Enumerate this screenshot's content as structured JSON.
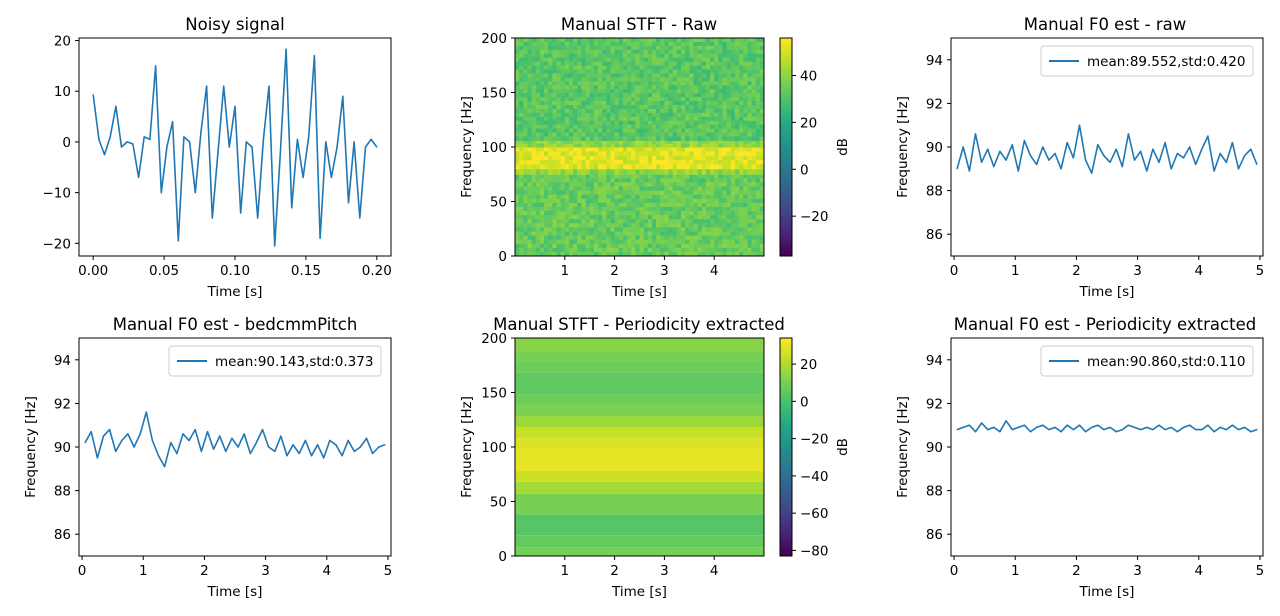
{
  "figure": {
    "titles": [
      "Noisy signal",
      "Manual STFT - Raw",
      "Manual F0 est - raw",
      "Manual F0 est - bedcmmPitch",
      "Manual STFT - Periodicity extracted",
      "Manual F0 est - Periodicity extracted"
    ]
  },
  "chart_data": [
    {
      "type": "line",
      "title": "Noisy signal",
      "xlabel": "Time [s]",
      "ylabel": "",
      "xlim": [
        -0.01,
        0.21
      ],
      "ylim": [
        -22.5,
        20.5
      ],
      "xticks": [
        0.0,
        0.05,
        0.1,
        0.15,
        0.2
      ],
      "xtick_labels": [
        "0.00",
        "0.05",
        "0.10",
        "0.15",
        "0.20"
      ],
      "yticks": [
        -20,
        -10,
        0,
        10,
        20
      ],
      "ytick_labels": [
        "−20",
        "−10",
        "0",
        "10",
        "20"
      ],
      "color": "#1f77b4",
      "series": [
        {
          "x": [
            0.0,
            0.004,
            0.008,
            0.012,
            0.016,
            0.02,
            0.024,
            0.028,
            0.032,
            0.036,
            0.04,
            0.044,
            0.048,
            0.052,
            0.056,
            0.06,
            0.064,
            0.068,
            0.072,
            0.076,
            0.08,
            0.084,
            0.088,
            0.092,
            0.096,
            0.1,
            0.104,
            0.108,
            0.112,
            0.116,
            0.12,
            0.124,
            0.128,
            0.132,
            0.136,
            0.14,
            0.144,
            0.148,
            0.152,
            0.156,
            0.16,
            0.164,
            0.168,
            0.172,
            0.176,
            0.18,
            0.184,
            0.188,
            0.192,
            0.196,
            0.2
          ],
          "y": [
            9.3,
            0.5,
            -2.5,
            1,
            7,
            -1,
            0,
            -0.4,
            -7,
            1,
            0.5,
            15,
            -10,
            -1,
            4,
            -19.5,
            1,
            0,
            -10,
            2,
            11,
            -15,
            -2,
            11,
            -1,
            7,
            -14,
            0,
            -1,
            -15,
            0.5,
            11,
            -20.5,
            -2,
            18.3,
            -13,
            0.5,
            -7,
            1,
            17,
            -19,
            0,
            -7,
            -1,
            9,
            -12,
            0,
            -15,
            -1,
            0.5,
            -1
          ]
        }
      ]
    },
    {
      "type": "heatmap",
      "title": "Manual STFT - Raw",
      "xlabel": "Time [s]",
      "ylabel": "Frequency [Hz]",
      "xlim": [
        0,
        5
      ],
      "ylim": [
        0,
        200
      ],
      "xticks": [
        1,
        2,
        3,
        4
      ],
      "yticks": [
        0,
        50,
        100,
        150,
        200
      ],
      "colormap": "viridis",
      "colorbar_label": "dB",
      "colorbar_range": [
        -37,
        56
      ],
      "colorbar_ticks": [
        -20,
        0,
        20,
        40
      ],
      "colorbar_tick_labels": [
        "−20",
        "0",
        "20",
        "40"
      ],
      "bands": [
        {
          "f_low": 0,
          "f_high": 75,
          "db": 34
        },
        {
          "f_low": 75,
          "f_high": 80,
          "db": 40
        },
        {
          "f_low": 80,
          "f_high": 100,
          "db": 52
        },
        {
          "f_low": 100,
          "f_high": 106,
          "db": 40
        },
        {
          "f_low": 106,
          "f_high": 200,
          "db": 32
        }
      ]
    },
    {
      "type": "line",
      "title": "Manual F0 est - raw",
      "xlabel": "Time [s]",
      "ylabel": "Frequency [Hz]",
      "xlim": [
        -0.05,
        5.05
      ],
      "ylim": [
        85,
        95
      ],
      "xticks": [
        0,
        1,
        2,
        3,
        4,
        5
      ],
      "yticks": [
        86,
        88,
        90,
        92,
        94
      ],
      "color": "#1f77b4",
      "series": [
        {
          "name": "mean:89.552,std:0.420",
          "x": [
            0.05,
            0.15,
            0.25,
            0.35,
            0.45,
            0.55,
            0.65,
            0.75,
            0.85,
            0.95,
            1.05,
            1.15,
            1.25,
            1.35,
            1.45,
            1.55,
            1.65,
            1.75,
            1.85,
            1.95,
            2.05,
            2.15,
            2.25,
            2.35,
            2.45,
            2.55,
            2.65,
            2.75,
            2.85,
            2.95,
            3.05,
            3.15,
            3.25,
            3.35,
            3.45,
            3.55,
            3.65,
            3.75,
            3.85,
            3.95,
            4.05,
            4.15,
            4.25,
            4.35,
            4.45,
            4.55,
            4.65,
            4.75,
            4.85,
            4.95
          ],
          "y": [
            89.0,
            90.0,
            88.9,
            90.6,
            89.3,
            89.9,
            89.1,
            89.8,
            89.4,
            90.1,
            88.9,
            90.3,
            89.6,
            89.2,
            90.0,
            89.4,
            89.7,
            89.0,
            90.2,
            89.5,
            91.0,
            89.4,
            88.8,
            90.1,
            89.6,
            89.3,
            89.9,
            89.1,
            90.6,
            89.4,
            89.8,
            88.9,
            89.9,
            89.3,
            90.2,
            89.0,
            89.7,
            89.5,
            90.0,
            89.2,
            89.9,
            90.5,
            88.9,
            89.7,
            89.3,
            90.2,
            89.0,
            89.6,
            89.9,
            89.2
          ]
        }
      ]
    },
    {
      "type": "line",
      "title": "Manual F0 est - bedcmmPitch",
      "xlabel": "Time [s]",
      "ylabel": "Frequency [Hz]",
      "xlim": [
        -0.05,
        5.05
      ],
      "ylim": [
        85,
        95
      ],
      "xticks": [
        0,
        1,
        2,
        3,
        4,
        5
      ],
      "yticks": [
        86,
        88,
        90,
        92,
        94
      ],
      "color": "#1f77b4",
      "series": [
        {
          "name": "mean:90.143,std:0.373",
          "x": [
            0.05,
            0.15,
            0.25,
            0.35,
            0.45,
            0.55,
            0.65,
            0.75,
            0.85,
            0.95,
            1.05,
            1.15,
            1.25,
            1.35,
            1.45,
            1.55,
            1.65,
            1.75,
            1.85,
            1.95,
            2.05,
            2.15,
            2.25,
            2.35,
            2.45,
            2.55,
            2.65,
            2.75,
            2.85,
            2.95,
            3.05,
            3.15,
            3.25,
            3.35,
            3.45,
            3.55,
            3.65,
            3.75,
            3.85,
            3.95,
            4.05,
            4.15,
            4.25,
            4.35,
            4.45,
            4.55,
            4.65,
            4.75,
            4.85,
            4.95
          ],
          "y": [
            90.2,
            90.7,
            89.5,
            90.5,
            90.8,
            89.8,
            90.3,
            90.6,
            90.0,
            90.6,
            91.6,
            90.3,
            89.6,
            89.1,
            90.2,
            89.7,
            90.6,
            90.3,
            90.8,
            89.8,
            90.7,
            89.9,
            90.5,
            89.8,
            90.4,
            90.0,
            90.6,
            89.7,
            90.2,
            90.8,
            90.0,
            89.8,
            90.5,
            89.6,
            90.1,
            89.7,
            90.3,
            89.6,
            90.1,
            89.5,
            90.3,
            90.1,
            89.6,
            90.3,
            89.8,
            90.0,
            90.4,
            89.7,
            90.0,
            90.1
          ]
        }
      ]
    },
    {
      "type": "heatmap",
      "title": "Manual STFT - Periodicity extracted",
      "xlabel": "Time [s]",
      "ylabel": "Frequency [Hz]",
      "xlim": [
        0,
        5
      ],
      "ylim": [
        0,
        200
      ],
      "xticks": [
        1,
        2,
        3,
        4
      ],
      "yticks": [
        0,
        50,
        100,
        150,
        200
      ],
      "colormap": "viridis",
      "colorbar_label": "dB",
      "colorbar_range": [
        -83,
        34
      ],
      "colorbar_ticks": [
        -80,
        -60,
        -40,
        -20,
        0,
        20
      ],
      "colorbar_tick_labels": [
        "−80",
        "−60",
        "−40",
        "−20",
        "0",
        "20"
      ],
      "bands": [
        {
          "f_low": 0,
          "f_high": 8,
          "db": 9
        },
        {
          "f_low": 8,
          "f_high": 19,
          "db": 6
        },
        {
          "f_low": 19,
          "f_high": 38,
          "db": 3
        },
        {
          "f_low": 38,
          "f_high": 57,
          "db": 10
        },
        {
          "f_low": 57,
          "f_high": 68,
          "db": 18
        },
        {
          "f_low": 68,
          "f_high": 78,
          "db": 25
        },
        {
          "f_low": 78,
          "f_high": 98,
          "db": 30
        },
        {
          "f_low": 98,
          "f_high": 108,
          "db": 28
        },
        {
          "f_low": 108,
          "f_high": 118,
          "db": 24
        },
        {
          "f_low": 118,
          "f_high": 128,
          "db": 17
        },
        {
          "f_low": 128,
          "f_high": 138,
          "db": 11
        },
        {
          "f_low": 138,
          "f_high": 148,
          "db": 8
        },
        {
          "f_low": 148,
          "f_high": 168,
          "db": 5
        },
        {
          "f_low": 168,
          "f_high": 178,
          "db": 8
        },
        {
          "f_low": 178,
          "f_high": 188,
          "db": 10
        },
        {
          "f_low": 188,
          "f_high": 200,
          "db": 13
        }
      ]
    },
    {
      "type": "line",
      "title": "Manual F0 est - Periodicity extracted",
      "xlabel": "Time [s]",
      "ylabel": "Frequency [Hz]",
      "xlim": [
        -0.05,
        5.05
      ],
      "ylim": [
        85,
        95
      ],
      "xticks": [
        0,
        1,
        2,
        3,
        4,
        5
      ],
      "yticks": [
        86,
        88,
        90,
        92,
        94
      ],
      "color": "#1f77b4",
      "series": [
        {
          "name": "mean:90.860,std:0.110",
          "x": [
            0.05,
            0.15,
            0.25,
            0.35,
            0.45,
            0.55,
            0.65,
            0.75,
            0.85,
            0.95,
            1.05,
            1.15,
            1.25,
            1.35,
            1.45,
            1.55,
            1.65,
            1.75,
            1.85,
            1.95,
            2.05,
            2.15,
            2.25,
            2.35,
            2.45,
            2.55,
            2.65,
            2.75,
            2.85,
            2.95,
            3.05,
            3.15,
            3.25,
            3.35,
            3.45,
            3.55,
            3.65,
            3.75,
            3.85,
            3.95,
            4.05,
            4.15,
            4.25,
            4.35,
            4.45,
            4.55,
            4.65,
            4.75,
            4.85,
            4.95
          ],
          "y": [
            90.8,
            90.9,
            91.0,
            90.7,
            91.1,
            90.8,
            90.9,
            90.7,
            91.2,
            90.8,
            90.9,
            91.0,
            90.7,
            90.9,
            91.0,
            90.8,
            90.9,
            90.7,
            91.0,
            90.8,
            91.0,
            90.7,
            90.9,
            91.0,
            90.8,
            90.9,
            90.7,
            90.8,
            91.0,
            90.9,
            90.8,
            90.9,
            90.8,
            91.0,
            90.8,
            90.9,
            90.7,
            90.9,
            91.0,
            90.8,
            90.8,
            91.0,
            90.7,
            90.9,
            90.8,
            91.0,
            90.8,
            90.9,
            90.7,
            90.8
          ]
        }
      ]
    }
  ]
}
